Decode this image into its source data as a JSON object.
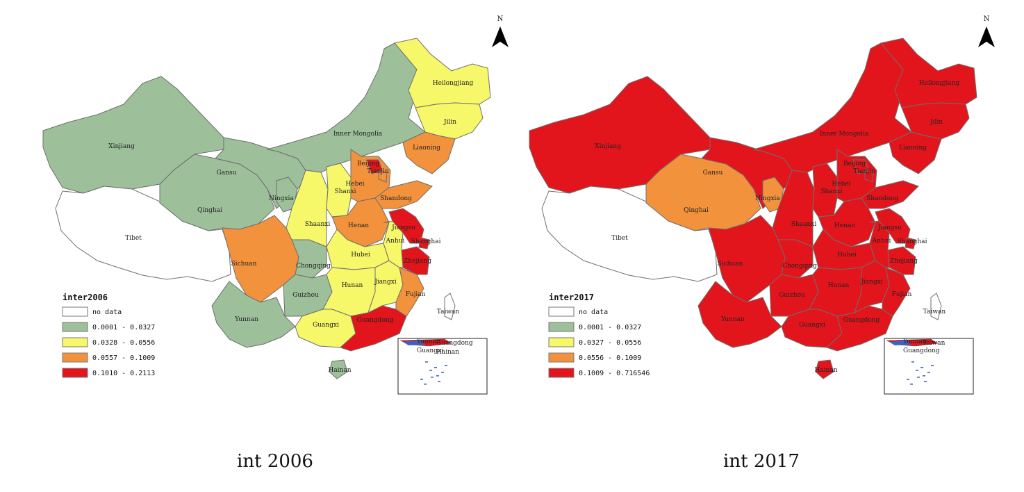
{
  "maps": [
    {
      "id": "map-2006",
      "caption": "int 2006",
      "legend_title": "inter2006",
      "north_label": "N",
      "legend": [
        {
          "label": "no data",
          "color": "#ffffff"
        },
        {
          "label": "0.0001 - 0.0327",
          "color": "#9dbf9a"
        },
        {
          "label": "0.0328 - 0.0556",
          "color": "#f7f76a"
        },
        {
          "label": "0.0557 - 0.1009",
          "color": "#f3923d"
        },
        {
          "label": "0.1010 - 0.2113",
          "color": "#e3151c"
        }
      ],
      "colors": {
        "xinjiang": "#9dbf9a",
        "tibet": "#ffffff",
        "qinghai": "#9dbf9a",
        "gansu": "#9dbf9a",
        "inner_mongolia": "#9dbf9a",
        "heilongjiang": "#f7f76a",
        "jilin": "#f7f76a",
        "liaoning": "#f3923d",
        "ningxia": "#9dbf9a",
        "sichuan": "#f3923d",
        "yunnan": "#9dbf9a",
        "guizhou": "#9dbf9a",
        "chongqing": "#9dbf9a",
        "shaanxi": "#f7f76a",
        "shanxi": "#f7f76a",
        "hebei": "#f3923d",
        "beijing": "#e3151c",
        "tianjin": "#f3923d",
        "shandong": "#f3923d",
        "henan": "#f3923d",
        "hubei": "#f7f76a",
        "hunan": "#f7f76a",
        "guangxi": "#f7f76a",
        "guangdong": "#e3151c",
        "jiangxi": "#f7f76a",
        "fujian": "#f3923d",
        "zhejiang": "#e3151c",
        "anhui": "#f7f76a",
        "jiangsu": "#e3151c",
        "shanghai": "#e3151c",
        "hainan": "#9dbf9a",
        "taiwan": "#ffffff"
      },
      "labels": {
        "xinjiang": "Xinjiang",
        "tibet": "Tibet",
        "qinghai": "Qinghai",
        "gansu": "Gansu",
        "inner_mongolia": "Inner Mongolia",
        "heilongjiang": "Heilongjiang",
        "jilin": "Jilin",
        "liaoning": "Liaoning",
        "ningxia": "Ningxia",
        "sichuan": "Sichuan",
        "yunnan": "Yunnan",
        "guizhou": "Guizhou",
        "chongqing": "Chongqing",
        "shaanxi": "Shaanxi",
        "shanxi": "Shanxi",
        "hebei": "Hebei",
        "beijing": "Beijing",
        "tianjin": "Tianjin",
        "shandong": "Shandong",
        "henan": "Henan",
        "hubei": "Hubei",
        "hunan": "Hunan",
        "guangxi": "Guangxi",
        "guangdong": "Guangdong",
        "jiangxi": "Jiangxi",
        "fujian": "Fujian",
        "zhejiang": "Zhejiang",
        "anhui": "Anhui",
        "jiangsu": "Jiangsu",
        "shanghai": "Shanghai",
        "hainan": "Hainan",
        "taiwan": "Taiwan"
      },
      "inset_labels": [
        "Yunnan",
        "Guangdong",
        "Guangxi",
        "Hainan"
      ]
    },
    {
      "id": "map-2017",
      "caption": "int 2017",
      "legend_title": "inter2017",
      "north_label": "N",
      "legend": [
        {
          "label": "no data",
          "color": "#ffffff"
        },
        {
          "label": "0.0001 - 0.0327",
          "color": "#9dbf9a"
        },
        {
          "label": "0.0327 - 0.0556",
          "color": "#f7f76a"
        },
        {
          "label": "0.0556 - 0.1009",
          "color": "#f3923d"
        },
        {
          "label": "0.1009 - 0.716546",
          "color": "#e3151c"
        }
      ],
      "colors": {
        "xinjiang": "#e3151c",
        "tibet": "#ffffff",
        "qinghai": "#f3923d",
        "gansu": "#e3151c",
        "inner_mongolia": "#e3151c",
        "heilongjiang": "#e3151c",
        "jilin": "#e3151c",
        "liaoning": "#e3151c",
        "ningxia": "#f3923d",
        "sichuan": "#e3151c",
        "yunnan": "#e3151c",
        "guizhou": "#e3151c",
        "chongqing": "#e3151c",
        "shaanxi": "#e3151c",
        "shanxi": "#e3151c",
        "hebei": "#e3151c",
        "beijing": "#e3151c",
        "tianjin": "#e3151c",
        "shandong": "#e3151c",
        "henan": "#e3151c",
        "hubei": "#e3151c",
        "hunan": "#e3151c",
        "guangxi": "#e3151c",
        "guangdong": "#e3151c",
        "jiangxi": "#e3151c",
        "fujian": "#e3151c",
        "zhejiang": "#e3151c",
        "anhui": "#e3151c",
        "jiangsu": "#e3151c",
        "shanghai": "#e3151c",
        "hainan": "#e3151c",
        "taiwan": "#ffffff"
      },
      "labels": {
        "xinjiang": "Xinjiang",
        "tibet": "Tibet",
        "qinghai": "Qinghai",
        "gansu": "Gansu",
        "inner_mongolia": "Inner Mongolia",
        "heilongjiang": "Heilongjiang",
        "jilin": "Jilin",
        "liaoning": "Liaoning",
        "ningxia": "Ningxia",
        "sichuan": "Sichuan",
        "yunnan": "Yunnan",
        "guizhou": "Guizhou",
        "chongqing": "Chongqing",
        "shaanxi": "Shaanxi",
        "shanxi": "Shanxi",
        "hebei": "Hebei",
        "beijing": "Beijing",
        "tianjin": "Tianjin",
        "shandong": "Shandong",
        "henan": "Henan",
        "hubei": "Hubei",
        "hunan": "Hunan",
        "guangxi": "Guangxi",
        "guangdong": "Guangdong",
        "jiangxi": "Jiangxi",
        "fujian": "Fujian",
        "zhejiang": "Zhejiang",
        "anhui": "Anhui",
        "jiangsu": "Jiangsu",
        "shanghai": "Shanghai",
        "hainan": "Hainan",
        "taiwan": "Taiwan"
      },
      "inset_labels": [
        "Yunnan",
        "Taiwan",
        "Guangdong"
      ]
    }
  ]
}
